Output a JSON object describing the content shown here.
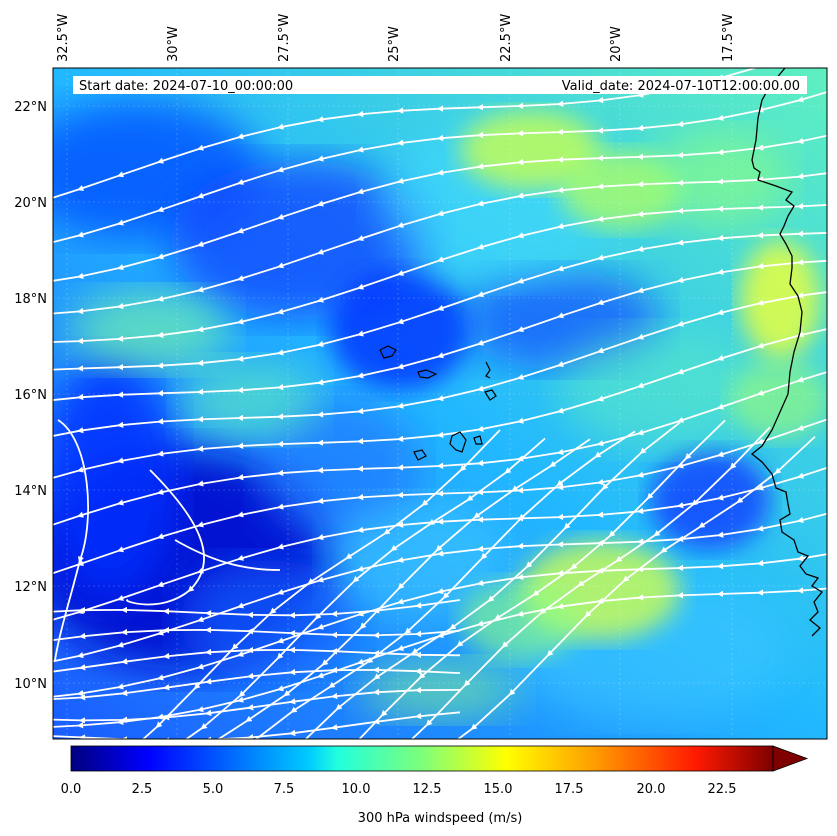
{
  "map": {
    "start_date_label": "Start date: 2024-07-10_00:00:00",
    "valid_date_label": "Valid_date: 2024-07-10T12:00:00.00",
    "lon_ticks": [
      "32.5°W",
      "30°W",
      "27.5°W",
      "25°W",
      "22.5°W",
      "20°W",
      "17.5°W"
    ],
    "lat_ticks": [
      "22°N",
      "20°N",
      "18°N",
      "16°N",
      "14°N",
      "12°N",
      "10°N"
    ],
    "extent": {
      "lon_min": -32.5,
      "lon_max": -15.0,
      "lat_min": 8.9,
      "lat_max": 22.8
    },
    "colors": {
      "streamline": "#ffffff",
      "coastline": "#000000"
    },
    "islands": [
      "Cape Verde islands"
    ]
  },
  "colorbar": {
    "label": "300 hPa windspeed (m/s)",
    "ticks": [
      "0.0",
      "2.5",
      "5.0",
      "7.5",
      "10.0",
      "12.5",
      "15.0",
      "17.5",
      "20.0",
      "22.5"
    ],
    "range": [
      0,
      25
    ],
    "extend": "max",
    "colormap": "jet"
  }
}
